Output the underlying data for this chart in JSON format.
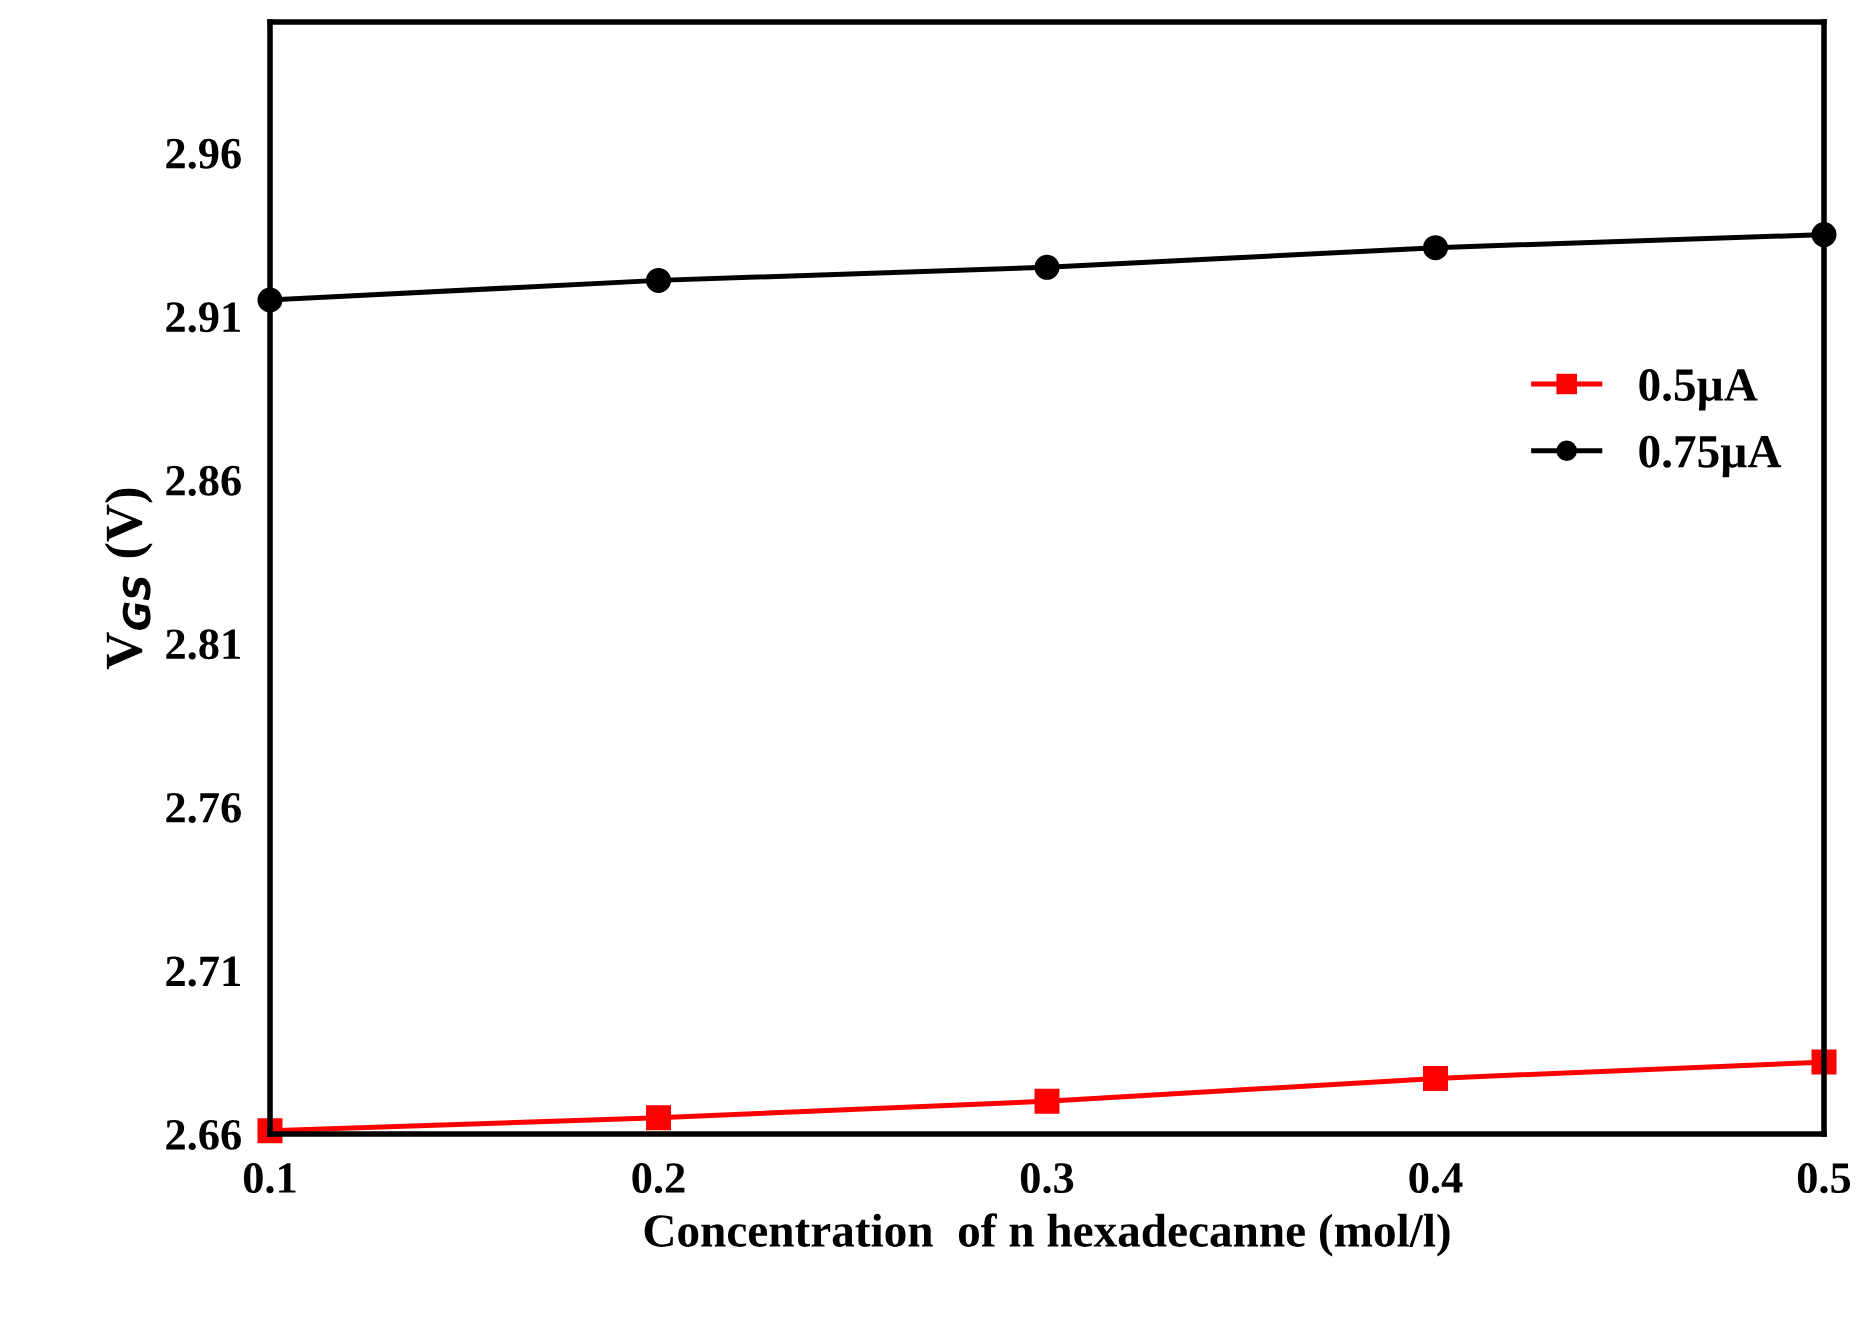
{
  "chart_data": {
    "type": "line",
    "xlabel": "Concentration  of n hexadecanne (mol/l)",
    "ylabel": "V$_{GS}$ (V)",
    "x": [
      0.1,
      0.2,
      0.3,
      0.4,
      0.5
    ],
    "series": [
      {
        "name": "0.5µA",
        "color": "#ff0000",
        "marker": "square",
        "values": [
          2.661,
          2.665,
          2.67,
          2.677,
          2.682
        ]
      },
      {
        "name": "0.75µA",
        "color": "#000000",
        "marker": "circle",
        "values": [
          2.915,
          2.921,
          2.925,
          2.931,
          2.935
        ]
      }
    ],
    "xlim": [
      0.1,
      0.5
    ],
    "xticks": [
      0.1,
      0.2,
      0.3,
      0.4,
      0.5
    ],
    "ylim": [
      2.66,
      3.0
    ],
    "yticks": [
      2.66,
      2.71,
      2.76,
      2.81,
      2.86,
      2.91,
      2.96
    ],
    "grid": false,
    "legend": "right",
    "line_style": "solid"
  }
}
